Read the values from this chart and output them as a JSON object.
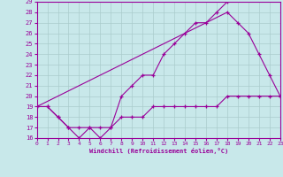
{
  "bg_color": "#c8e8ea",
  "grid_color": "#aacccc",
  "line_color": "#990099",
  "xlabel": "Windchill (Refroidissement éolien,°C)",
  "xlim": [
    0,
    23
  ],
  "ylim": [
    16,
    29
  ],
  "x_ticks": [
    0,
    1,
    2,
    3,
    4,
    5,
    6,
    7,
    8,
    9,
    10,
    11,
    12,
    13,
    14,
    15,
    16,
    17,
    18,
    19,
    20,
    21,
    22,
    23
  ],
  "y_ticks": [
    16,
    17,
    18,
    19,
    20,
    21,
    22,
    23,
    24,
    25,
    26,
    27,
    28,
    29
  ],
  "series": [
    {
      "name": "line1_zigzag_up",
      "x": [
        0,
        1,
        2,
        3,
        4,
        5,
        6,
        7,
        8,
        9,
        10,
        11,
        12,
        13,
        14,
        15,
        16,
        17,
        18
      ],
      "y": [
        19,
        19,
        18,
        17,
        17,
        17,
        16,
        17,
        20,
        21,
        22,
        22,
        24,
        25,
        26,
        27,
        27,
        28,
        29
      ],
      "marker": "+"
    },
    {
      "name": "line2_envelope",
      "x": [
        0,
        18,
        19,
        20,
        21,
        22,
        23
      ],
      "y": [
        19,
        28,
        27,
        26,
        24,
        22,
        20
      ],
      "marker": "+"
    },
    {
      "name": "line3_low",
      "x": [
        0,
        1,
        2,
        3,
        4,
        5,
        6,
        7,
        8,
        9,
        10,
        11,
        12,
        13,
        14,
        15,
        16,
        17,
        18,
        19,
        20,
        21,
        22,
        23
      ],
      "y": [
        19,
        19,
        18,
        17,
        16,
        17,
        17,
        17,
        18,
        18,
        18,
        19,
        19,
        19,
        19,
        19,
        19,
        19,
        20,
        20,
        20,
        20,
        20,
        20
      ],
      "marker": "+"
    }
  ]
}
